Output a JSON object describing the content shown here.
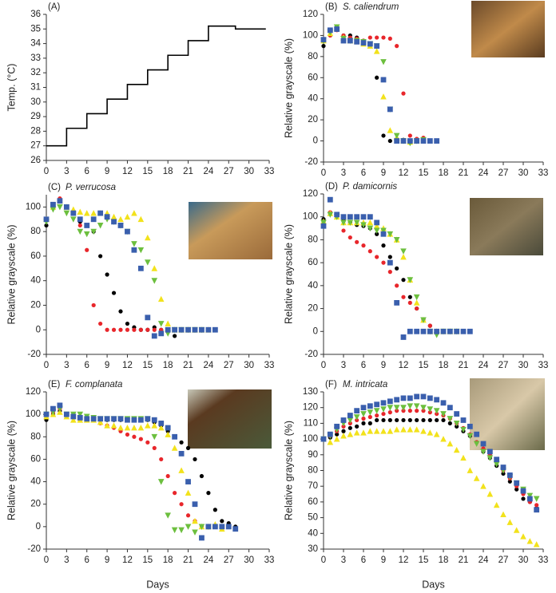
{
  "chart_data": [
    {
      "type": "line",
      "label": "(A)",
      "ylabel": "Temp. (°C)",
      "xlim": [
        0,
        33
      ],
      "xticks": [
        0,
        3,
        6,
        9,
        12,
        15,
        18,
        21,
        24,
        27,
        30,
        33
      ],
      "ylim": [
        26,
        36
      ],
      "yticks": [
        26,
        27,
        28,
        29,
        30,
        31,
        32,
        33,
        34,
        35,
        36
      ],
      "x": [
        0,
        3,
        3,
        6,
        6,
        9,
        9,
        12,
        12,
        15,
        15,
        18,
        18,
        21,
        21,
        24,
        24,
        28,
        28,
        32.5
      ],
      "series": [
        {
          "color": "#000000",
          "values": [
            27,
            27,
            28.2,
            28.2,
            29.2,
            29.2,
            30.2,
            30.2,
            31.2,
            31.2,
            32.2,
            32.2,
            33.2,
            33.2,
            34.2,
            34.2,
            35.2,
            35.2,
            35,
            35
          ]
        }
      ]
    },
    {
      "type": "scatter",
      "label": "(B)",
      "title": "S. caliendrum",
      "ylabel": "Relative grayscale (%)",
      "xlim": [
        0,
        33
      ],
      "xticks": [
        0,
        3,
        6,
        9,
        12,
        15,
        18,
        21,
        24,
        27,
        30,
        33
      ],
      "ylim": [
        -20,
        120
      ],
      "yticks": [
        -20,
        0,
        20,
        40,
        60,
        80,
        100,
        120
      ],
      "x": [
        0,
        1,
        2,
        3,
        4,
        5,
        6,
        7,
        8,
        9,
        10,
        11,
        12,
        13,
        14,
        15,
        16,
        17
      ],
      "series": [
        {
          "color": "#000000",
          "marker": "circle",
          "values": [
            90,
            100,
            108,
            100,
            100,
            98,
            95,
            90,
            60,
            5,
            0,
            2,
            1,
            0,
            1,
            0,
            null,
            null
          ]
        },
        {
          "color": "#e8262b",
          "marker": "circle",
          "values": [
            95,
            100,
            105,
            100,
            98,
            97,
            95,
            98,
            98,
            98,
            97,
            90,
            45,
            5,
            2,
            3,
            null,
            null
          ]
        },
        {
          "color": "#f2e21c",
          "marker": "triangle",
          "values": [
            95,
            102,
            107,
            98,
            95,
            95,
            92,
            90,
            85,
            42,
            10,
            3,
            0,
            -1,
            0,
            null,
            null,
            null
          ]
        },
        {
          "color": "#6cbf3e",
          "marker": "triangle-down",
          "values": [
            95,
            103,
            108,
            97,
            95,
            95,
            94,
            92,
            90,
            75,
            30,
            5,
            0,
            -2,
            0,
            1,
            null,
            null
          ]
        },
        {
          "color": "#3a5fad",
          "marker": "square",
          "values": [
            96,
            105,
            106,
            95,
            95,
            94,
            93,
            92,
            90,
            58,
            30,
            0,
            0,
            0,
            0,
            0,
            0,
            0
          ]
        }
      ]
    },
    {
      "type": "scatter",
      "label": "(C)",
      "title": "P. verrucosa",
      "ylabel": "Relative grayscale (%)",
      "xlim": [
        0,
        33
      ],
      "xticks": [
        0,
        3,
        6,
        9,
        12,
        15,
        18,
        21,
        24,
        27,
        30,
        33
      ],
      "ylim": [
        -20,
        110
      ],
      "yticks": [
        -20,
        0,
        20,
        40,
        60,
        80,
        100
      ],
      "x": [
        0,
        1,
        2,
        3,
        4,
        5,
        6,
        7,
        8,
        9,
        10,
        11,
        12,
        13,
        14,
        15,
        16,
        17,
        18,
        19,
        20,
        21,
        22,
        23,
        24,
        25
      ],
      "series": [
        {
          "color": "#000000",
          "marker": "circle",
          "values": [
            85,
            100,
            105,
            100,
            95,
            88,
            85,
            80,
            60,
            45,
            30,
            15,
            5,
            2,
            0,
            0,
            2,
            0,
            0,
            -5,
            null,
            null,
            null,
            null,
            null,
            null
          ]
        },
        {
          "color": "#e8262b",
          "marker": "circle",
          "values": [
            90,
            100,
            107,
            100,
            95,
            85,
            65,
            20,
            5,
            0,
            0,
            0,
            0,
            0,
            0,
            0,
            0,
            0,
            0,
            0,
            0,
            0,
            0,
            0,
            0,
            0
          ]
        },
        {
          "color": "#f2e21c",
          "marker": "triangle",
          "values": [
            90,
            100,
            105,
            100,
            98,
            96,
            95,
            95,
            95,
            95,
            92,
            90,
            92,
            95,
            90,
            75,
            50,
            25,
            5,
            0,
            0,
            0,
            0,
            0,
            0,
            null
          ]
        },
        {
          "color": "#6cbf3e",
          "marker": "triangle-down",
          "values": [
            88,
            98,
            100,
            95,
            90,
            80,
            78,
            80,
            85,
            90,
            88,
            85,
            80,
            70,
            65,
            55,
            40,
            5,
            -3,
            0,
            0,
            0,
            0,
            0,
            null,
            null
          ]
        },
        {
          "color": "#3a5fad",
          "marker": "square",
          "values": [
            90,
            102,
            105,
            100,
            95,
            90,
            85,
            90,
            95,
            92,
            88,
            85,
            80,
            65,
            50,
            10,
            -5,
            -3,
            0,
            0,
            0,
            0,
            0,
            0,
            0,
            0
          ]
        }
      ]
    },
    {
      "type": "scatter",
      "label": "(D)",
      "title": "P. damicornis",
      "ylabel": "Relative grayscale (%)",
      "xlim": [
        0,
        33
      ],
      "xticks": [
        0,
        3,
        6,
        9,
        12,
        15,
        18,
        21,
        24,
        27,
        30,
        33
      ],
      "ylim": [
        -20,
        120
      ],
      "yticks": [
        -20,
        0,
        20,
        40,
        60,
        80,
        100,
        120
      ],
      "x": [
        0,
        1,
        2,
        3,
        4,
        5,
        6,
        7,
        8,
        9,
        10,
        11,
        12,
        13,
        14,
        15,
        16,
        17,
        18,
        19,
        20,
        21,
        22
      ],
      "series": [
        {
          "color": "#000000",
          "marker": "circle",
          "values": [
            98,
            103,
            100,
            98,
            95,
            93,
            92,
            90,
            85,
            75,
            65,
            55,
            45,
            30,
            20,
            10,
            5,
            0,
            0,
            0,
            0,
            null,
            null
          ]
        },
        {
          "color": "#e8262b",
          "marker": "circle",
          "values": [
            95,
            104,
            100,
            88,
            82,
            78,
            75,
            70,
            65,
            60,
            52,
            40,
            30,
            25,
            20,
            10,
            5,
            0,
            0,
            0,
            0,
            0,
            0
          ]
        },
        {
          "color": "#f2e21c",
          "marker": "triangle",
          "values": [
            96,
            103,
            100,
            95,
            95,
            95,
            95,
            95,
            92,
            90,
            85,
            80,
            65,
            45,
            25,
            10,
            0,
            0,
            0,
            0,
            0,
            null,
            null
          ]
        },
        {
          "color": "#6cbf3e",
          "marker": "triangle-down",
          "values": [
            95,
            102,
            100,
            95,
            95,
            95,
            93,
            90,
            88,
            88,
            85,
            80,
            70,
            45,
            30,
            10,
            0,
            -3,
            0,
            0,
            0,
            null,
            null
          ]
        },
        {
          "color": "#3a5fad",
          "marker": "square",
          "values": [
            92,
            115,
            102,
            100,
            100,
            100,
            100,
            100,
            95,
            85,
            60,
            25,
            -5,
            0,
            0,
            0,
            0,
            0,
            0,
            0,
            0,
            0,
            0
          ]
        }
      ]
    },
    {
      "type": "scatter",
      "label": "(E)",
      "title": "F. complanata",
      "ylabel": "Relative grayscale (%)",
      "xlabel": "Days",
      "xlim": [
        0,
        33
      ],
      "xticks": [
        0,
        3,
        6,
        9,
        12,
        15,
        18,
        21,
        24,
        27,
        30,
        33
      ],
      "ylim": [
        -20,
        120
      ],
      "yticks": [
        -20,
        0,
        20,
        40,
        60,
        80,
        100,
        120
      ],
      "x": [
        0,
        1,
        2,
        3,
        4,
        5,
        6,
        7,
        8,
        9,
        10,
        11,
        12,
        13,
        14,
        15,
        16,
        17,
        18,
        19,
        20,
        21,
        22,
        23,
        24,
        25,
        26,
        27,
        28
      ],
      "series": [
        {
          "color": "#000000",
          "marker": "circle",
          "values": [
            95,
            100,
            103,
            100,
            100,
            98,
            97,
            96,
            95,
            95,
            95,
            95,
            95,
            95,
            95,
            95,
            93,
            90,
            85,
            80,
            75,
            70,
            60,
            45,
            30,
            15,
            5,
            3,
            0
          ]
        },
        {
          "color": "#e8262b",
          "marker": "circle",
          "values": [
            100,
            102,
            105,
            100,
            98,
            95,
            95,
            95,
            92,
            90,
            88,
            85,
            82,
            80,
            78,
            75,
            70,
            60,
            45,
            30,
            20,
            10,
            5,
            0,
            0,
            0,
            null,
            null,
            null
          ]
        },
        {
          "color": "#f2e21c",
          "marker": "triangle",
          "values": [
            98,
            100,
            102,
            98,
            95,
            95,
            95,
            95,
            93,
            90,
            90,
            88,
            88,
            88,
            88,
            90,
            90,
            88,
            82,
            70,
            50,
            30,
            5,
            0,
            0,
            2,
            -2,
            null,
            null
          ]
        },
        {
          "color": "#6cbf3e",
          "marker": "triangle-down",
          "values": [
            100,
            102,
            105,
            100,
            100,
            100,
            98,
            97,
            96,
            96,
            96,
            96,
            96,
            96,
            96,
            96,
            80,
            40,
            10,
            -3,
            -3,
            0,
            -5,
            0,
            0,
            null,
            null,
            null,
            null
          ]
        },
        {
          "color": "#3a5fad",
          "marker": "square",
          "values": [
            100,
            105,
            108,
            100,
            98,
            97,
            96,
            96,
            96,
            96,
            96,
            96,
            95,
            95,
            95,
            96,
            95,
            92,
            88,
            80,
            65,
            40,
            20,
            -10,
            0,
            0,
            0,
            0,
            -2
          ]
        }
      ]
    },
    {
      "type": "scatter",
      "label": "(F)",
      "title": "M. intricata",
      "ylabel": "Relative grayscale (%)",
      "xlabel": "Days",
      "xlim": [
        0,
        33
      ],
      "xticks": [
        0,
        3,
        6,
        9,
        12,
        15,
        18,
        21,
        24,
        27,
        30,
        33
      ],
      "ylim": [
        30,
        130
      ],
      "yticks": [
        30,
        40,
        50,
        60,
        70,
        80,
        90,
        100,
        110,
        120,
        130
      ],
      "x": [
        0,
        1,
        2,
        3,
        4,
        5,
        6,
        7,
        8,
        9,
        10,
        11,
        12,
        13,
        14,
        15,
        16,
        17,
        18,
        19,
        20,
        21,
        22,
        23,
        24,
        25,
        26,
        27,
        28,
        29,
        30,
        31,
        32
      ],
      "series": [
        {
          "color": "#000000",
          "marker": "circle",
          "values": [
            100,
            101,
            103,
            105,
            107,
            108,
            110,
            110,
            112,
            112,
            112,
            112,
            112,
            112,
            112,
            112,
            112,
            112,
            112,
            110,
            108,
            105,
            102,
            98,
            92,
            88,
            83,
            78,
            73,
            68,
            62,
            60,
            56
          ]
        },
        {
          "color": "#e8262b",
          "marker": "circle",
          "values": [
            100,
            102,
            105,
            108,
            110,
            112,
            113,
            114,
            115,
            116,
            117,
            118,
            118,
            118,
            118,
            118,
            117,
            116,
            115,
            113,
            110,
            107,
            103,
            98,
            94,
            90,
            85,
            80,
            75,
            70,
            65,
            60,
            58
          ]
        },
        {
          "color": "#f2e21c",
          "marker": "triangle",
          "values": [
            100,
            98,
            100,
            102,
            103,
            104,
            104,
            105,
            105,
            105,
            105,
            106,
            106,
            106,
            106,
            105,
            104,
            103,
            100,
            97,
            93,
            88,
            80,
            75,
            70,
            65,
            58,
            52,
            47,
            42,
            38,
            35,
            33
          ]
        },
        {
          "color": "#6cbf3e",
          "marker": "triangle-down",
          "values": [
            100,
            102,
            106,
            110,
            112,
            114,
            116,
            117,
            118,
            119,
            120,
            120,
            120,
            121,
            121,
            120,
            119,
            118,
            116,
            113,
            110,
            106,
            102,
            97,
            92,
            88,
            84,
            80,
            76,
            72,
            68,
            64,
            62
          ]
        },
        {
          "color": "#3a5fad",
          "marker": "square",
          "values": [
            100,
            103,
            108,
            112,
            115,
            118,
            120,
            121,
            122,
            123,
            124,
            125,
            126,
            126,
            127,
            127,
            126,
            125,
            123,
            120,
            116,
            112,
            108,
            103,
            97,
            92,
            87,
            82,
            77,
            72,
            67,
            62,
            55
          ]
        }
      ]
    }
  ]
}
